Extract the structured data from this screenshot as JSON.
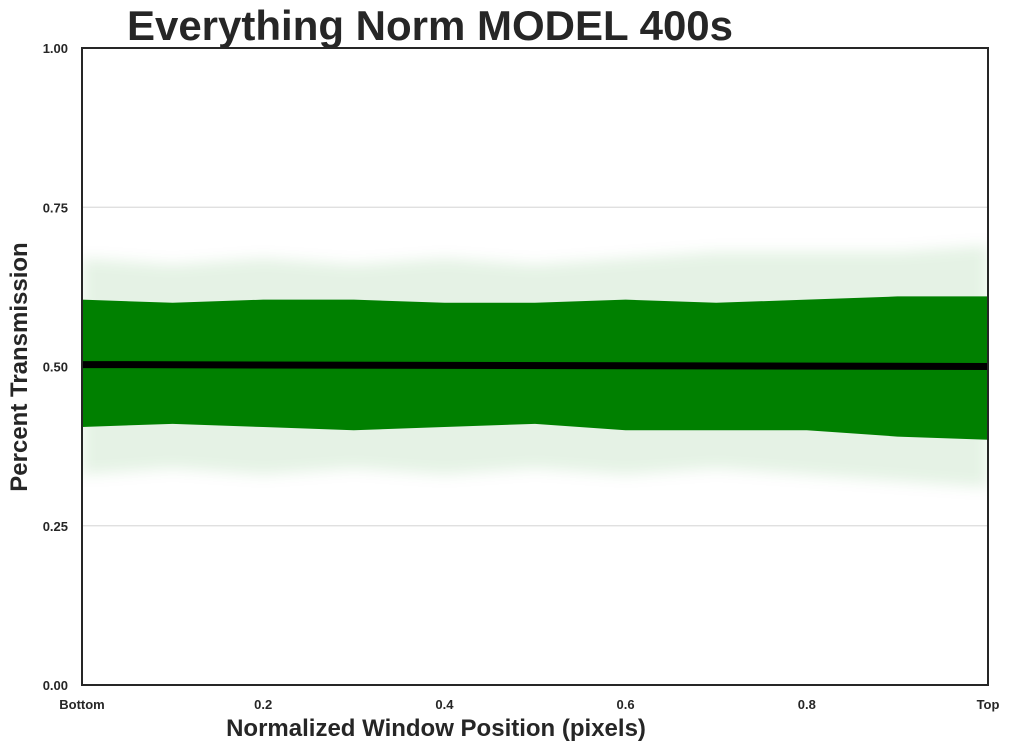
{
  "chart_data": {
    "type": "line",
    "title": "Everything Norm MODEL 400s",
    "xlabel": "Normalized Window Position (pixels)",
    "ylabel": "Percent Transmission",
    "xlim": [
      0,
      1
    ],
    "ylim": [
      0,
      1
    ],
    "x_ticks": [
      {
        "value": 0.0,
        "label": "Bottom"
      },
      {
        "value": 0.2,
        "label": "0.2"
      },
      {
        "value": 0.4,
        "label": "0.4"
      },
      {
        "value": 0.6,
        "label": "0.6"
      },
      {
        "value": 0.8,
        "label": "0.8"
      },
      {
        "value": 1.0,
        "label": "Top"
      }
    ],
    "y_ticks": [
      {
        "value": 0.0,
        "label": "0.00"
      },
      {
        "value": 0.25,
        "label": "0.25"
      },
      {
        "value": 0.5,
        "label": "0.50"
      },
      {
        "value": 0.75,
        "label": "0.75"
      },
      {
        "value": 1.0,
        "label": "1.00"
      }
    ],
    "grid": "horizontal",
    "legend": "none",
    "series": [
      {
        "kind": "band",
        "color": "#008000",
        "x": [
          0.0,
          0.1,
          0.2,
          0.3,
          0.4,
          0.5,
          0.6,
          0.7,
          0.8,
          0.9,
          1.0
        ],
        "low": [
          0.405,
          0.41,
          0.405,
          0.4,
          0.405,
          0.41,
          0.4,
          0.4,
          0.4,
          0.39,
          0.385
        ],
        "high": [
          0.605,
          0.6,
          0.605,
          0.605,
          0.6,
          0.6,
          0.605,
          0.6,
          0.605,
          0.61,
          0.61
        ]
      },
      {
        "kind": "band",
        "color": "#008000",
        "opacity": 0.1,
        "x": [
          0.0,
          0.1,
          0.2,
          0.3,
          0.4,
          0.5,
          0.6,
          0.7,
          0.8,
          0.9,
          1.0
        ],
        "low": [
          0.33,
          0.34,
          0.33,
          0.34,
          0.33,
          0.34,
          0.33,
          0.34,
          0.33,
          0.32,
          0.31
        ],
        "high": [
          0.67,
          0.66,
          0.67,
          0.66,
          0.67,
          0.66,
          0.67,
          0.68,
          0.68,
          0.68,
          0.69
        ]
      },
      {
        "kind": "line",
        "color": "#000000",
        "x": [
          0.0,
          1.0
        ],
        "y": [
          0.503,
          0.5
        ]
      }
    ]
  }
}
